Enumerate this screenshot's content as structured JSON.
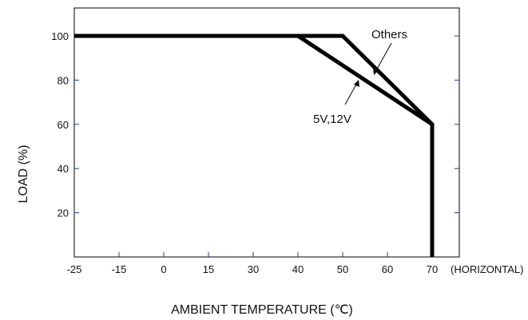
{
  "chart_data": {
    "type": "line",
    "x_tick_values": [
      -25,
      -15,
      0,
      15,
      30,
      40,
      50,
      60,
      70
    ],
    "x_tick_labels": [
      "-25",
      "-15",
      "0",
      "15",
      "30",
      "40",
      "50",
      "60",
      "70"
    ],
    "x_unit_note": "(HORIZONTAL)",
    "y_tick_values": [
      20,
      40,
      60,
      80,
      100
    ],
    "y_tick_labels": [
      "20",
      "40",
      "60",
      "80",
      "100"
    ],
    "xlabel": "AMBIENT TEMPERATURE (℃)",
    "ylabel": "LOAD (%)",
    "series": [
      {
        "name": "Others",
        "x": [
          -25,
          50,
          70,
          70
        ],
        "y": [
          100,
          100,
          60,
          0
        ]
      },
      {
        "name": "5V,12V",
        "x": [
          -25,
          40,
          70,
          70
        ],
        "y": [
          100,
          100,
          60,
          0
        ]
      }
    ],
    "grid": false,
    "legend": "inline annotations with arrows"
  },
  "colors": {
    "line": "#000000",
    "axis": "#000000",
    "tick": "#1f3a8a"
  }
}
